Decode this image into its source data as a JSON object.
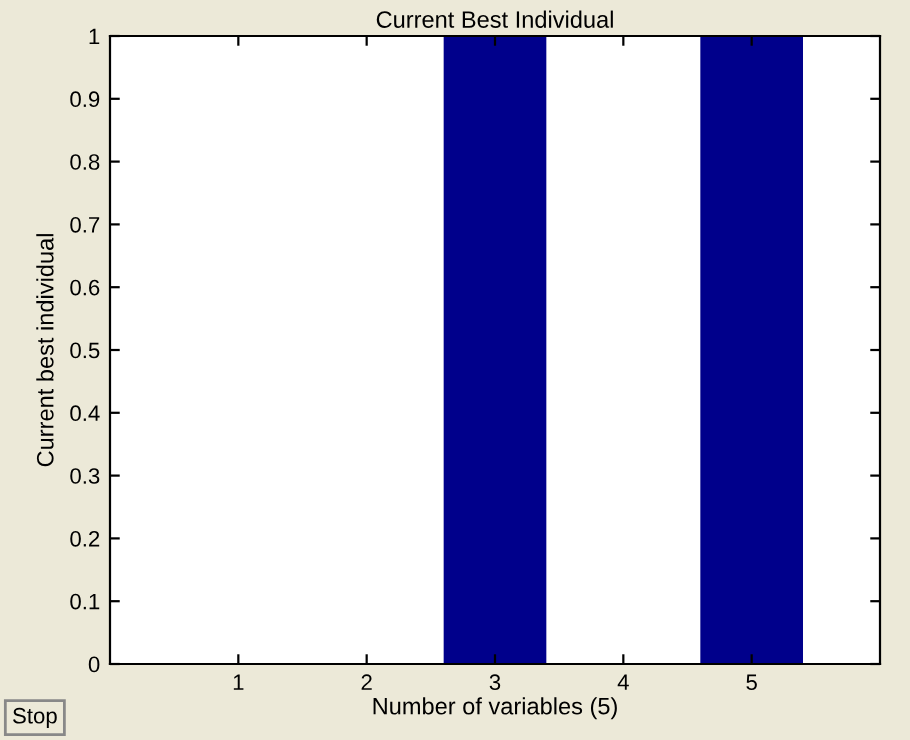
{
  "chart_data": {
    "type": "bar",
    "title": "Current Best Individual",
    "xlabel": "Number of variables (5)",
    "ylabel": "Current best individual",
    "x": [
      1,
      2,
      3,
      4,
      5
    ],
    "values": [
      0,
      0,
      1,
      0,
      1
    ],
    "color": "#00008b",
    "xlim": [
      0,
      6
    ],
    "xticks": [
      1,
      2,
      3,
      4,
      5
    ],
    "ylim": [
      0,
      1
    ],
    "yticks": [
      0,
      0.1,
      0.2,
      0.3,
      0.4,
      0.5,
      0.6,
      0.7,
      0.8,
      0.9,
      1
    ],
    "grid": false,
    "legend": false,
    "annotations": [
      "Stop"
    ]
  }
}
